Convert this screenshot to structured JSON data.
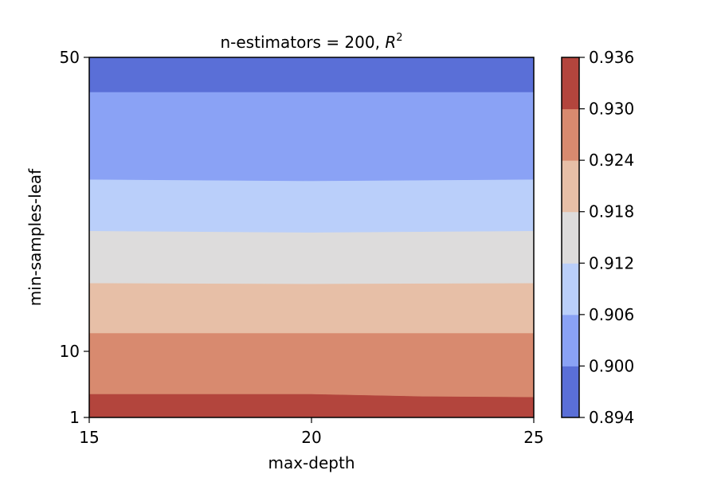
{
  "chart_data": {
    "type": "contourf",
    "title": "n-estimators = 200, ",
    "title_math_symbol": "R",
    "title_math_sup": "2",
    "xlabel": "max-depth",
    "ylabel": "min-samples-leaf",
    "x_ticks": [
      15,
      20,
      25
    ],
    "x_tick_labels": [
      "15",
      "20",
      "25"
    ],
    "xlim": [
      15,
      25
    ],
    "y_ticks": [
      1,
      10,
      50
    ],
    "y_tick_labels": [
      "1",
      "10",
      "50"
    ],
    "ylim": [
      1,
      50
    ],
    "colormap": "coolwarm",
    "levels": [
      0.894,
      0.9,
      0.906,
      0.912,
      0.918,
      0.924,
      0.93,
      0.936
    ],
    "level_labels": [
      "0.894",
      "0.900",
      "0.906",
      "0.912",
      "0.918",
      "0.924",
      "0.930",
      "0.936"
    ],
    "band_colors": [
      "#5a6fd7",
      "#8aa2f5",
      "#bacffa",
      "#dddcdc",
      "#e7bfa7",
      "#d88a6f",
      "#b3453d"
    ],
    "boundaries": [
      {
        "level": 0.93,
        "points": [
          [
            15,
            4.2
          ],
          [
            17.5,
            4.2
          ],
          [
            20,
            4.2
          ],
          [
            22.5,
            3.9
          ],
          [
            25,
            3.8
          ]
        ]
      },
      {
        "level": 0.924,
        "points": [
          [
            15,
            12.5
          ],
          [
            20,
            12.5
          ],
          [
            25,
            12.5
          ]
        ]
      },
      {
        "level": 0.918,
        "points": [
          [
            15,
            19.3
          ],
          [
            20,
            19.2
          ],
          [
            25,
            19.3
          ]
        ]
      },
      {
        "level": 0.912,
        "points": [
          [
            15,
            26.4
          ],
          [
            20,
            26.2
          ],
          [
            25,
            26.4
          ]
        ]
      },
      {
        "level": 0.906,
        "points": [
          [
            15,
            33.4
          ],
          [
            20,
            33.2
          ],
          [
            25,
            33.4
          ]
        ]
      },
      {
        "level": 0.9,
        "points": [
          [
            15,
            45.3
          ],
          [
            20,
            45.3
          ],
          [
            25,
            45.3
          ]
        ]
      }
    ]
  }
}
